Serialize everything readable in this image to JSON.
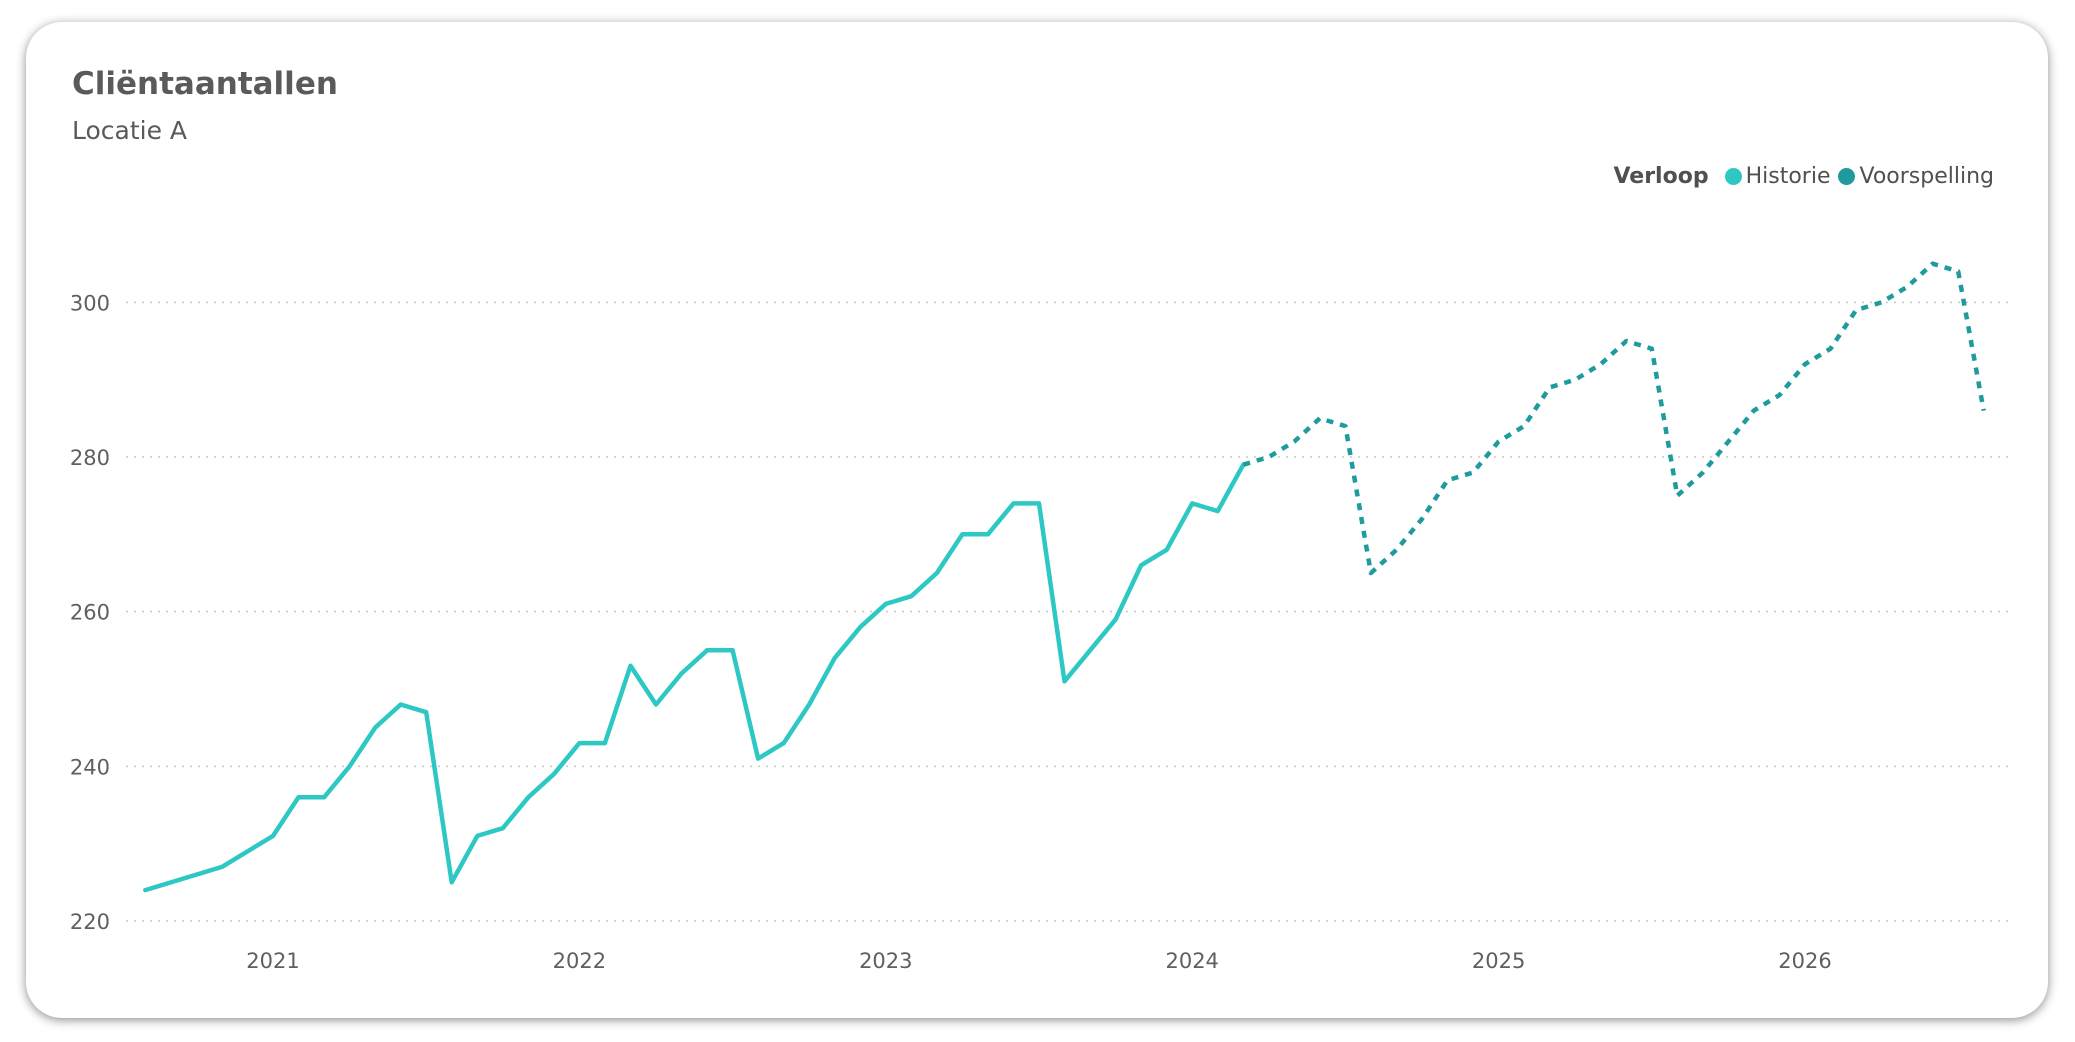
{
  "title": "Cliëntaantallen",
  "subtitle": "Locatie A",
  "legend": {
    "title": "Verloop",
    "items": [
      {
        "label": "Historie",
        "color": "#2ec8c4"
      },
      {
        "label": "Voorspelling",
        "color": "#1f9b9e"
      }
    ]
  },
  "chart_data": {
    "type": "line",
    "title": "Cliëntaantallen",
    "subtitle": "Locatie A",
    "xlabel": "",
    "ylabel": "",
    "x_ticks": [
      "2021",
      "2022",
      "2023",
      "2024",
      "2025",
      "2026"
    ],
    "y_ticks": [
      220,
      240,
      260,
      280,
      300
    ],
    "ylim": [
      220,
      310
    ],
    "xlim": [
      "2020-07",
      "2026-08"
    ],
    "grid": "horizontal-dotted",
    "legend_position": "top-right",
    "series": [
      {
        "name": "Historie",
        "color": "#2ec8c4",
        "style": "solid",
        "x": [
          "2020-08",
          "2020-11",
          "2021-01",
          "2021-02",
          "2021-03",
          "2021-04",
          "2021-05",
          "2021-06",
          "2021-07",
          "2021-08",
          "2021-09",
          "2021-10",
          "2021-11",
          "2021-12",
          "2022-01",
          "2022-02",
          "2022-03",
          "2022-04",
          "2022-05",
          "2022-06",
          "2022-07",
          "2022-08",
          "2022-09",
          "2022-10",
          "2022-11",
          "2022-12",
          "2023-01",
          "2023-02",
          "2023-03",
          "2023-04",
          "2023-05",
          "2023-06",
          "2023-07",
          "2023-08",
          "2023-09",
          "2023-10",
          "2023-11",
          "2023-12",
          "2024-01",
          "2024-02",
          "2024-03"
        ],
        "y": [
          224,
          227,
          231,
          236,
          236,
          240,
          245,
          248,
          247,
          225,
          231,
          232,
          236,
          239,
          243,
          243,
          253,
          248,
          252,
          255,
          255,
          241,
          243,
          248,
          254,
          258,
          261,
          262,
          265,
          270,
          270,
          274,
          274,
          251,
          255,
          259,
          266,
          268,
          274,
          273,
          279
        ]
      },
      {
        "name": "Voorspelling",
        "color": "#1f9b9e",
        "style": "dashed",
        "x": [
          "2024-03",
          "2024-04",
          "2024-05",
          "2024-06",
          "2024-07",
          "2024-08",
          "2024-09",
          "2024-10",
          "2024-11",
          "2024-12",
          "2025-01",
          "2025-02",
          "2025-03",
          "2025-04",
          "2025-05",
          "2025-06",
          "2025-07",
          "2025-08",
          "2025-09",
          "2025-10",
          "2025-11",
          "2025-12",
          "2026-01",
          "2026-02",
          "2026-03",
          "2026-04",
          "2026-05",
          "2026-06",
          "2026-07",
          "2026-08"
        ],
        "y": [
          279,
          280,
          282,
          285,
          284,
          265,
          268,
          272,
          277,
          278,
          282,
          284,
          289,
          290,
          292,
          295,
          294,
          275,
          278,
          282,
          286,
          288,
          292,
          294,
          299,
          300,
          302,
          305,
          304,
          286
        ]
      }
    ]
  }
}
